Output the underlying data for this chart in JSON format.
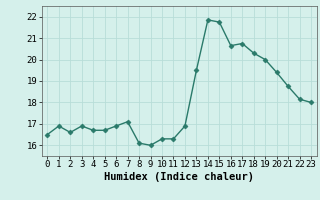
{
  "x": [
    0,
    1,
    2,
    3,
    4,
    5,
    6,
    7,
    8,
    9,
    10,
    11,
    12,
    13,
    14,
    15,
    16,
    17,
    18,
    19,
    20,
    21,
    22,
    23
  ],
  "y": [
    16.5,
    16.9,
    16.6,
    16.9,
    16.7,
    16.7,
    16.9,
    17.1,
    16.1,
    16.0,
    16.3,
    16.3,
    16.9,
    19.5,
    21.85,
    21.75,
    20.65,
    20.75,
    20.3,
    20.0,
    19.4,
    18.75,
    18.15,
    18.0
  ],
  "line_color": "#2a7a6a",
  "marker": "D",
  "marker_size": 2.5,
  "bg_color": "#d5f0eb",
  "grid_color": "#b8ddd8",
  "xlabel": "Humidex (Indice chaleur)",
  "ylim": [
    15.5,
    22.5
  ],
  "xlim": [
    -0.5,
    23.5
  ],
  "yticks": [
    16,
    17,
    18,
    19,
    20,
    21,
    22
  ],
  "xticks": [
    0,
    1,
    2,
    3,
    4,
    5,
    6,
    7,
    8,
    9,
    10,
    11,
    12,
    13,
    14,
    15,
    16,
    17,
    18,
    19,
    20,
    21,
    22,
    23
  ],
  "tick_fontsize": 6.5,
  "xlabel_fontsize": 7.5,
  "linewidth": 1.0
}
